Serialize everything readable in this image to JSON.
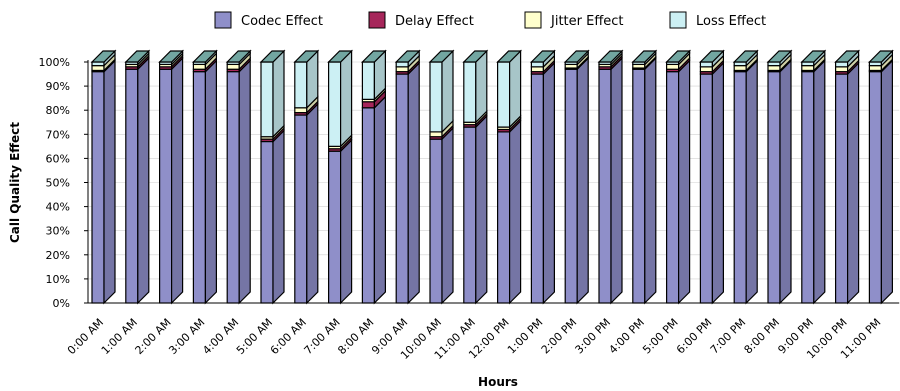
{
  "chart_data": {
    "type": "bar",
    "stacked": true,
    "percent_stacked": true,
    "three_d": true,
    "xlabel": "Hours",
    "ylabel": "Call Quality Effect",
    "ylim": [
      0,
      100
    ],
    "yticks": [
      "0%",
      "10%",
      "20%",
      "30%",
      "40%",
      "50%",
      "60%",
      "70%",
      "80%",
      "90%",
      "100%"
    ],
    "legend_position": "top",
    "categories": [
      "0:00 AM",
      "1:00 AM",
      "2:00 AM",
      "3:00 AM",
      "4:00 AM",
      "5:00 AM",
      "6:00 AM",
      "7:00 AM",
      "8:00 AM",
      "9:00 AM",
      "10:00 AM",
      "11:00 AM",
      "12:00 PM",
      "1:00 PM",
      "2:00 PM",
      "3:00 PM",
      "4:00 PM",
      "5:00 PM",
      "6:00 PM",
      "7:00 PM",
      "8:00 PM",
      "9:00 PM",
      "10:00 PM",
      "11:00 PM"
    ],
    "series": [
      {
        "name": "Codec Effect",
        "color": "#8f8fc9",
        "values": [
          96,
          97,
          97,
          96,
          96,
          67,
          78,
          63,
          81,
          95,
          68,
          73,
          71,
          95,
          97,
          97,
          97,
          96,
          95,
          96,
          96,
          96,
          95,
          96
        ]
      },
      {
        "name": "Delay Effect",
        "color": "#a6265a",
        "values": [
          0.5,
          1,
          1,
          1,
          1,
          1,
          1,
          1,
          2.5,
          1,
          1,
          1,
          1,
          1,
          0.5,
          1,
          0.5,
          1,
          1,
          0.5,
          0.5,
          0.5,
          1,
          0.5
        ]
      },
      {
        "name": "Jitter Effect",
        "color": "#ffffcc",
        "values": [
          2,
          1,
          1,
          2,
          2,
          1,
          2,
          1,
          1,
          2,
          2,
          1,
          1,
          2,
          1.5,
          1,
          1.5,
          2,
          2,
          2,
          2,
          2,
          2,
          2
        ]
      },
      {
        "name": "Loss Effect",
        "color": "#ccf0f4",
        "values": [
          1.5,
          1,
          1,
          1,
          1,
          31,
          19,
          35,
          15.5,
          2,
          29,
          25,
          27,
          2,
          1,
          1,
          1,
          1,
          2,
          1.5,
          1.5,
          1.5,
          2,
          1.5
        ]
      }
    ]
  }
}
